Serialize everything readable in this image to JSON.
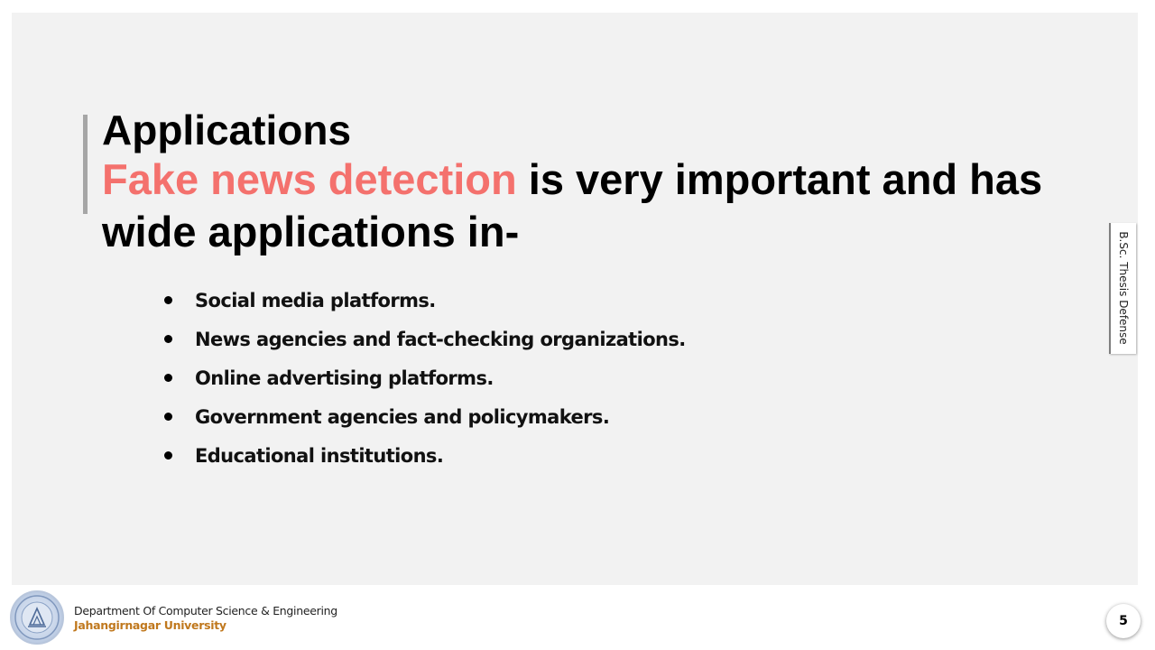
{
  "slide": {
    "title": "Applications",
    "headline_highlight": "Fake news detection",
    "headline_rest": " is very important and has wide applications in-",
    "bullets": [
      "Social media platforms.",
      "News agencies and fact-checking organizations.",
      "Online advertising platforms.",
      "Government agencies and policymakers.",
      "Educational institutions."
    ],
    "side_tab": "B.Sc. Thesis Defense"
  },
  "footer": {
    "department": "Department Of Computer Science & Engineering",
    "university": "Jahangirnagar University",
    "page_number": "5"
  },
  "colors": {
    "highlight": "#f4716d",
    "university": "#c0781d",
    "panel": "#f2f2f2"
  }
}
